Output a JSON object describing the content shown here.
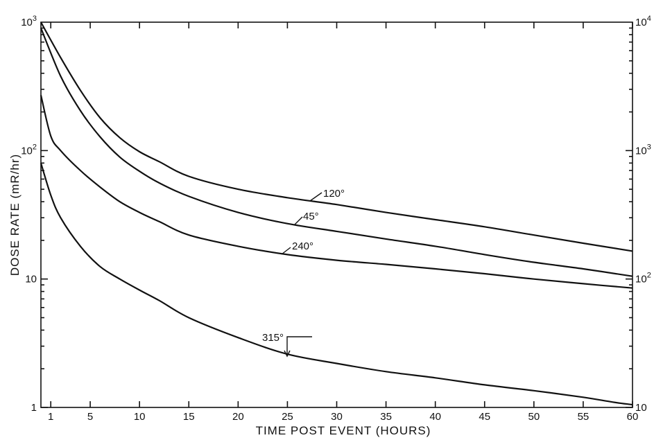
{
  "chart_data": {
    "type": "line",
    "title": "",
    "xlabel": "TIME POST EVENT (HOURS)",
    "ylabel": "DOSE RATE (mR/hr)",
    "xlim": [
      0,
      60
    ],
    "ylim": [
      1,
      1000
    ],
    "y_scale": "log",
    "y2lim": [
      10,
      10000
    ],
    "y2_scale": "log",
    "grid": false,
    "x_ticks": [
      1,
      5,
      10,
      15,
      20,
      25,
      30,
      35,
      40,
      45,
      50,
      55,
      60
    ],
    "x_tick_labels": [
      "1",
      "5",
      "10",
      "15",
      "20",
      "25",
      "30",
      "35",
      "40",
      "45",
      "50",
      "55",
      "60"
    ],
    "y_tick_labels": [
      {
        "value": 1,
        "label": "1"
      },
      {
        "value": 10,
        "label": "10"
      },
      {
        "value": 100,
        "label": "10",
        "sup": "2"
      },
      {
        "value": 1000,
        "label": "10",
        "sup": "3"
      }
    ],
    "y2_tick_labels": [
      {
        "value": 10,
        "label": "10"
      },
      {
        "value": 100,
        "label": "10",
        "sup": "2"
      },
      {
        "value": 1000,
        "label": "10",
        "sup": "3"
      },
      {
        "value": 10000,
        "label": "10",
        "sup": "4"
      }
    ],
    "series": [
      {
        "name": "120°",
        "x": [
          0,
          2,
          4,
          6,
          8,
          10,
          12,
          15,
          20,
          25,
          30,
          35,
          40,
          45,
          50,
          55,
          60
        ],
        "y": [
          1000,
          530,
          295,
          180,
          126,
          98,
          82,
          63,
          50,
          43,
          38,
          33,
          29,
          25.5,
          22,
          19,
          16.5
        ]
      },
      {
        "name": "45°",
        "x": [
          0,
          2,
          4,
          6,
          8,
          10,
          12,
          15,
          20,
          25,
          30,
          35,
          40,
          45,
          50,
          55,
          60
        ],
        "y": [
          900,
          380,
          205,
          128,
          89,
          69,
          56,
          44,
          33,
          27,
          23.5,
          20.5,
          18,
          15.5,
          13.5,
          12,
          10.5
        ]
      },
      {
        "name": "240°",
        "x": [
          0,
          1,
          2,
          4,
          6,
          8,
          10,
          12,
          15,
          20,
          25,
          30,
          35,
          40,
          45,
          50,
          55,
          60
        ],
        "y": [
          270,
          130,
          100,
          70,
          52,
          40,
          33,
          28,
          22,
          18,
          15.5,
          14,
          13,
          12,
          11,
          10,
          9.2,
          8.5
        ]
      },
      {
        "name": "315°",
        "x": [
          0,
          1,
          2,
          4,
          6,
          8,
          10,
          12,
          15,
          20,
          25,
          30,
          35,
          40,
          45,
          50,
          55,
          58,
          60
        ],
        "y": [
          80,
          45,
          30,
          18,
          12.5,
          10,
          8.2,
          6.8,
          5,
          3.5,
          2.6,
          2.2,
          1.9,
          1.7,
          1.5,
          1.35,
          1.2,
          1.1,
          1.05
        ]
      }
    ],
    "annotations": [
      "120°",
      "45°",
      "240°",
      "315°"
    ]
  }
}
